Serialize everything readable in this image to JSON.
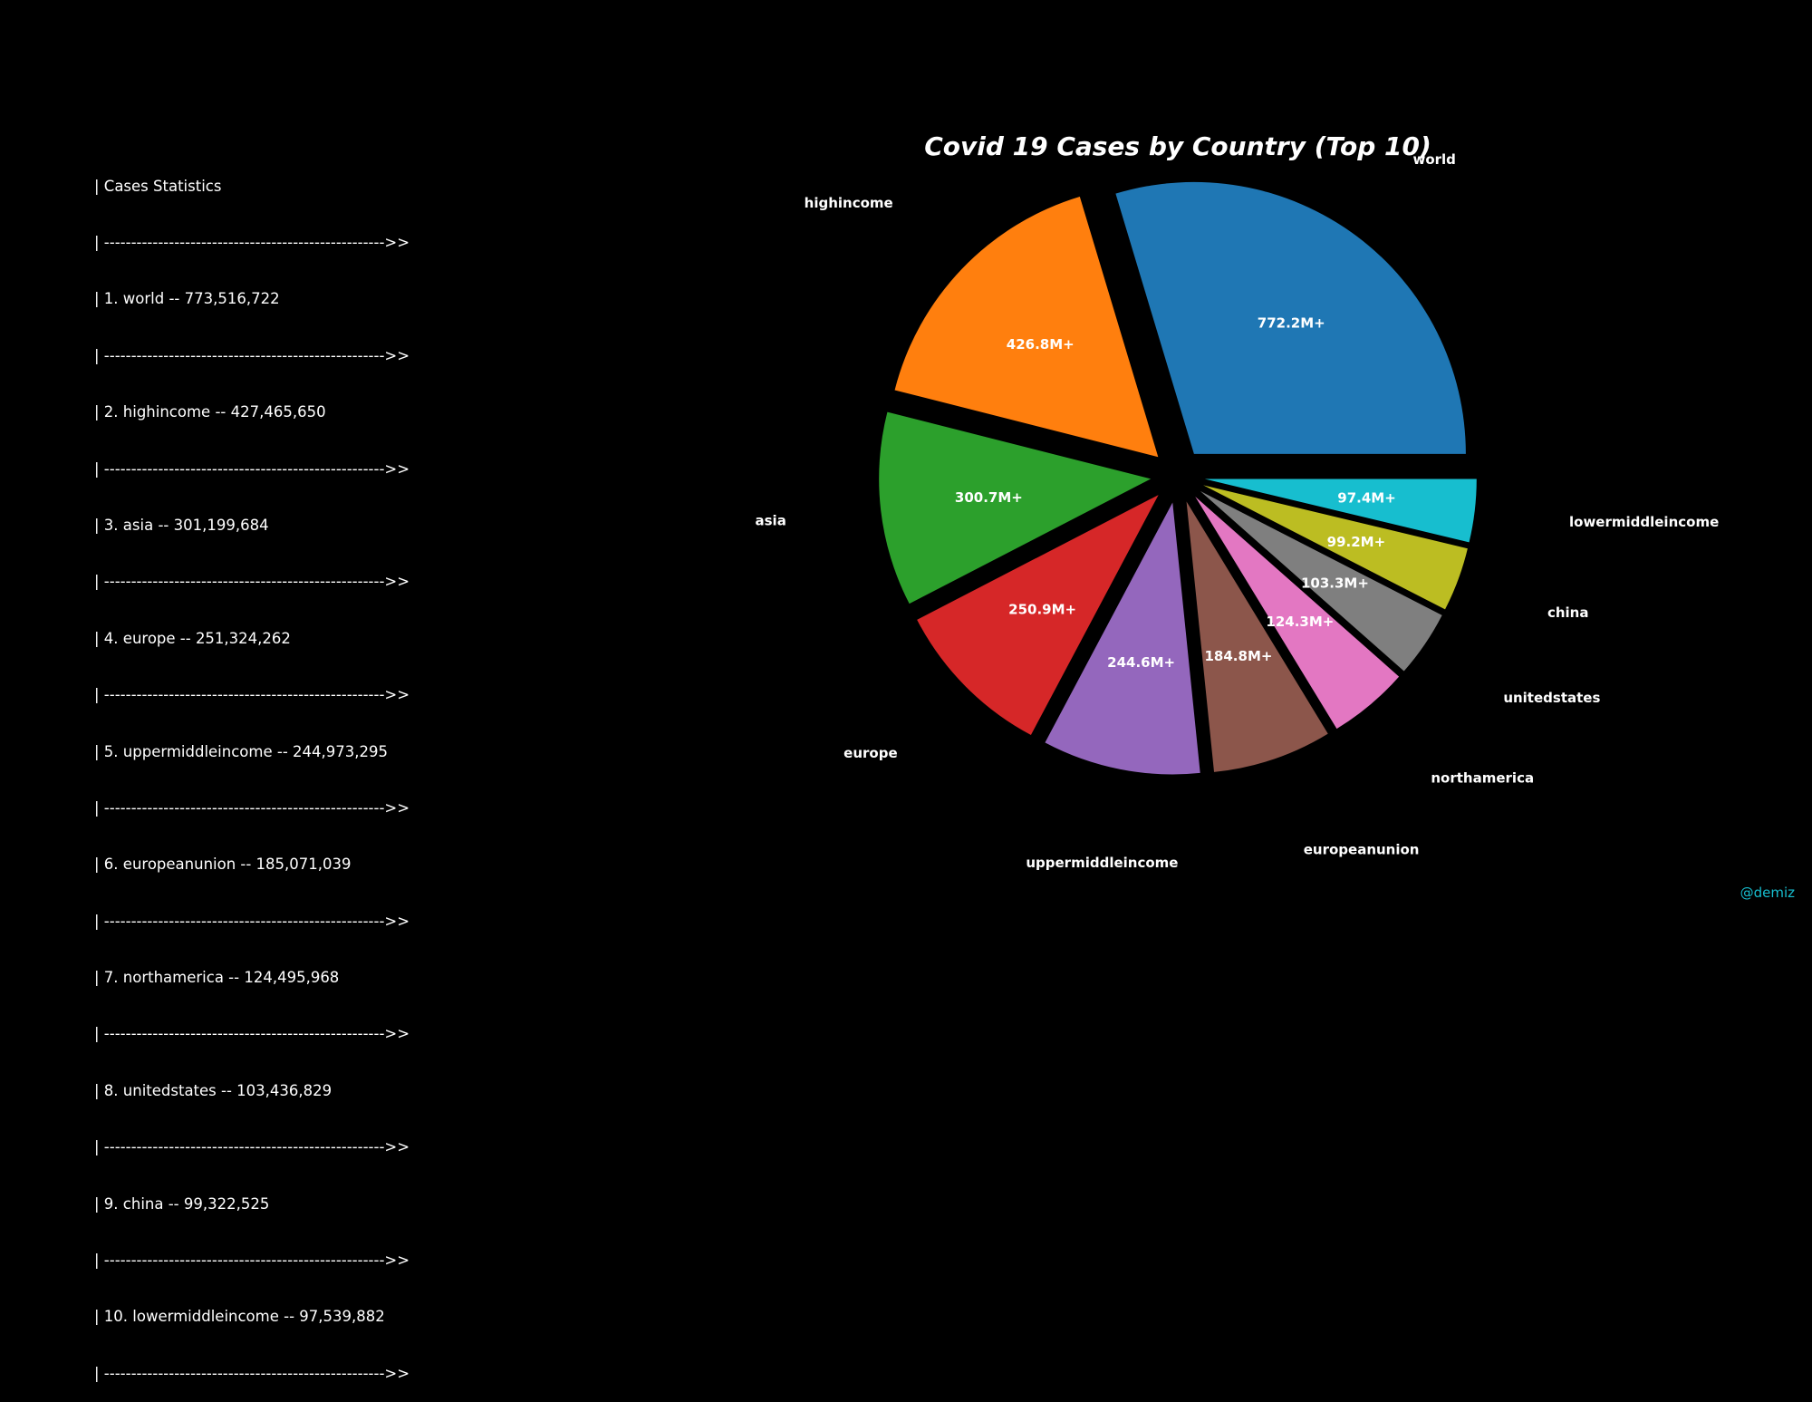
{
  "stats_panel": {
    "header": "| Cases Statistics",
    "divider": "| ---------------------------------------------------->>",
    "rows": [
      "| 1. world -- 773,516,722",
      "| 2. highincome -- 427,465,650",
      "| 3. asia -- 301,199,684",
      "| 4. europe -- 251,324,262",
      "| 5. uppermiddleincome -- 244,973,295",
      "| 6. europeanunion -- 185,071,039",
      "| 7. northamerica -- 124,495,968",
      "| 8. unitedstates -- 103,436,829",
      "| 9. china -- 99,322,525",
      "| 10. lowermiddleincome -- 97,539,882"
    ]
  },
  "chart_data": {
    "type": "pie",
    "title": "Covid 19 Cases by Country (Top 10)",
    "start_angle_deg": 0,
    "direction": "counterclockwise",
    "exploded": true,
    "categories": [
      "world",
      "highincome",
      "asia",
      "europe",
      "uppermiddleincome",
      "europeanunion",
      "northamerica",
      "unitedstates",
      "china",
      "lowermiddleincome"
    ],
    "values": [
      773516722,
      427465650,
      301199684,
      251324262,
      244973295,
      185071039,
      124495968,
      103436829,
      99322525,
      97539882
    ],
    "value_labels": [
      "772.2M+",
      "426.8M+",
      "300.7M+",
      "250.9M+",
      "244.6M+",
      "184.8M+",
      "124.3M+",
      "103.3M+",
      "99.2M+",
      "97.4M+"
    ],
    "colors": [
      "#1f77b4",
      "#ff7f0e",
      "#2ca02c",
      "#d62728",
      "#9467bd",
      "#8c564b",
      "#e377c2",
      "#7f7f7f",
      "#bcbd22",
      "#17becf"
    ]
  },
  "watermark": "@demiz"
}
